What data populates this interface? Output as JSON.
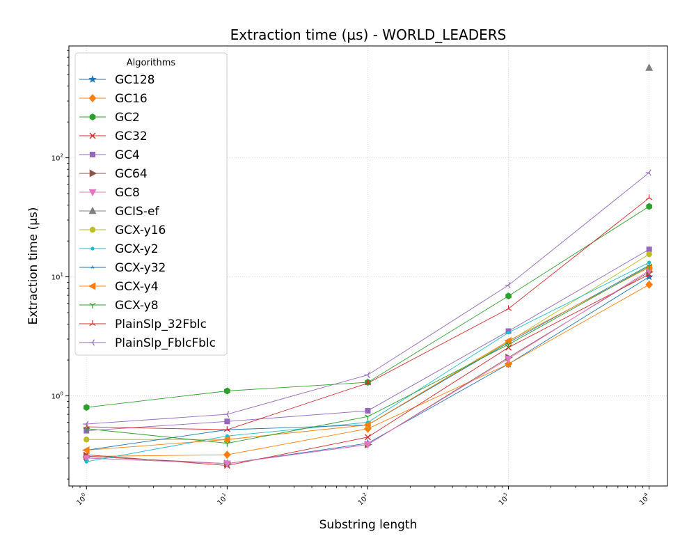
{
  "chart_data": {
    "type": "line",
    "title": "Extraction time (µs) - WORLD_LEADERS",
    "xlabel": "Substring length",
    "ylabel": "Extraction time (µs)",
    "x_scale": "log",
    "y_scale": "log",
    "xlim": [
      0.75,
      13500
    ],
    "ylim": [
      0.175,
      870
    ],
    "x_ticks": [
      {
        "value": 1,
        "base": "10",
        "exp": "0"
      },
      {
        "value": 10,
        "base": "10",
        "exp": "1"
      },
      {
        "value": 100,
        "base": "10",
        "exp": "2"
      },
      {
        "value": 1000,
        "base": "10",
        "exp": "3"
      },
      {
        "value": 10000,
        "base": "10",
        "exp": "4"
      }
    ],
    "y_ticks": [
      {
        "value": 1,
        "base": "10",
        "exp": "0"
      },
      {
        "value": 10,
        "base": "10",
        "exp": "1"
      },
      {
        "value": 100,
        "base": "10",
        "exp": "2"
      }
    ],
    "grid": true,
    "legend": {
      "title": "Algorithms",
      "placement": "upper-left"
    },
    "x": [
      1,
      10,
      100,
      1000,
      10000
    ],
    "series": [
      {
        "name": "GC128",
        "color": "#1f77b4",
        "marker": "star",
        "values": [
          0.3,
          0.27,
          0.4,
          1.85,
          10.0
        ]
      },
      {
        "name": "GC16",
        "color": "#ff7f0e",
        "marker": "diamond",
        "values": [
          0.31,
          0.32,
          0.53,
          1.85,
          8.6
        ]
      },
      {
        "name": "GC2",
        "color": "#2ca02c",
        "marker": "hexagon",
        "values": [
          0.8,
          1.1,
          1.3,
          6.9,
          39.0
        ]
      },
      {
        "name": "GC32",
        "color": "#d62728",
        "marker": "x",
        "values": [
          0.32,
          0.26,
          0.45,
          2.55,
          10.5
        ]
      },
      {
        "name": "GC4",
        "color": "#9467bd",
        "marker": "square",
        "values": [
          0.51,
          0.61,
          0.75,
          3.5,
          17.0
        ]
      },
      {
        "name": "GC64",
        "color": "#8c564b",
        "marker": "triangle-right",
        "values": [
          0.31,
          0.27,
          0.39,
          2.1,
          11.0
        ]
      },
      {
        "name": "GC8",
        "color": "#e377c2",
        "marker": "triangle-down",
        "values": [
          0.3,
          0.27,
          0.39,
          2.05,
          11.3
        ]
      },
      {
        "name": "GCIS-ef",
        "color": "#7f7f7f",
        "marker": "triangle-up",
        "values": [
          null,
          null,
          null,
          null,
          570
        ]
      },
      {
        "name": "GCX-y16",
        "color": "#bcbd22",
        "marker": "circle",
        "values": [
          0.43,
          0.43,
          0.57,
          2.85,
          15.5
        ]
      },
      {
        "name": "GCX-y2",
        "color": "#17becf",
        "marker": "point",
        "values": [
          0.28,
          0.46,
          0.6,
          3.4,
          13.2
        ]
      },
      {
        "name": "GCX-y32",
        "color": "#1f77b4",
        "marker": "tri-point",
        "values": [
          0.35,
          0.52,
          0.57,
          2.8,
          12.5
        ]
      },
      {
        "name": "GCX-y4",
        "color": "#ff7f0e",
        "marker": "triangle-left",
        "values": [
          0.35,
          0.43,
          0.57,
          2.9,
          12.0
        ]
      },
      {
        "name": "GCX-y8",
        "color": "#2ca02c",
        "marker": "tri-down",
        "values": [
          0.53,
          0.4,
          0.67,
          2.7,
          12.3
        ]
      },
      {
        "name": "PlainSlp_32Fblc",
        "color": "#d62728",
        "marker": "tri-up",
        "values": [
          0.55,
          0.52,
          1.28,
          5.4,
          46.0
        ]
      },
      {
        "name": "PlainSlp_FblcFblc",
        "color": "#9467bd",
        "marker": "tri-left",
        "values": [
          0.58,
          0.7,
          1.5,
          8.5,
          75.0
        ]
      }
    ]
  }
}
